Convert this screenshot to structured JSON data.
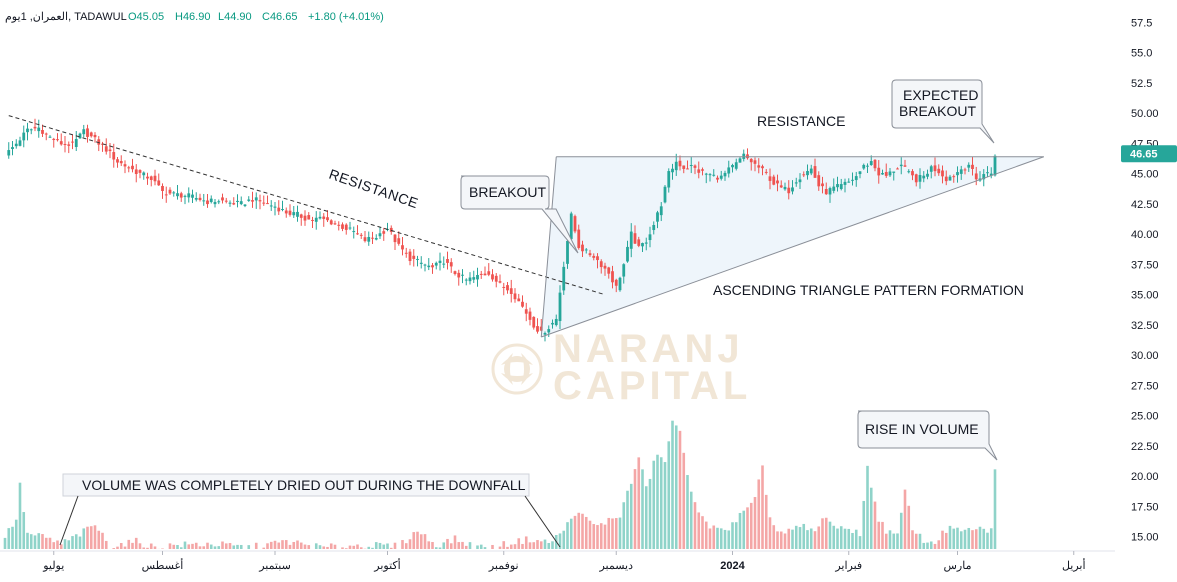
{
  "header": {
    "symbol": "العمران, 1يوم, TADAWUL",
    "open": "O45.05",
    "high": "H46.90",
    "low": "L44.90",
    "close": "C46.65",
    "change": "+1.80 (+4.01%)"
  },
  "watermark": {
    "line1": "NARANJ",
    "line2": "CAPITAL"
  },
  "colors": {
    "up": "#26a69a",
    "down": "#ef5350",
    "vol_up": "#8fd3c9",
    "vol_down": "#f4a6a6",
    "price_tag": "#26a69a",
    "triangle_fill": "#eef5fb"
  },
  "annotations": {
    "resistance_diag": "RESISTANCE",
    "resistance_top": "RESISTANCE",
    "triangle": "ASCENDING TRIANGLE PATTERN FORMATION",
    "breakout": "BREAKOUT",
    "expected_1": "EXPECTED",
    "expected_2": "BREAKOUT",
    "rise_volume": "RISE IN VOLUME",
    "volume_dried": "VOLUME WAS COMPLETELY DRIED OUT DURING THE DOWNFALL"
  },
  "chart_data": {
    "type": "candlestick",
    "price_axis": {
      "ticks": [
        "57.5",
        "55.0",
        "52.5",
        "50.00",
        "47.50",
        "45.00",
        "42.50",
        "40.00",
        "37.50",
        "35.00",
        "32.50",
        "30.00",
        "27.50",
        "25.00",
        "22.50",
        "20.00",
        "17.50",
        "15.00"
      ],
      "range": [
        13.4,
        58.2
      ],
      "last_price": "46.65"
    },
    "time_axis": {
      "ticks": [
        "يوليو",
        "أغسطس",
        "سبتمبر",
        "أكتوبر",
        "نوفمبر",
        "ديسمبر",
        "2024",
        "فبراير",
        "مارس",
        "أبريل"
      ],
      "tick_days": [
        13,
        42,
        72,
        102,
        133,
        163,
        194,
        225,
        254,
        285
      ]
    },
    "price_path": [
      [
        0,
        46.5
      ],
      [
        3,
        47.5
      ],
      [
        6,
        48.6
      ],
      [
        9,
        48.8
      ],
      [
        12,
        48.0
      ],
      [
        15,
        47.5
      ],
      [
        18,
        47.4
      ],
      [
        21,
        48.5
      ],
      [
        24,
        47.8
      ],
      [
        27,
        47.0
      ],
      [
        30,
        46.0
      ],
      [
        33,
        45.5
      ],
      [
        36,
        45.0
      ],
      [
        39,
        44.6
      ],
      [
        42,
        43.5
      ],
      [
        45,
        43.3
      ],
      [
        48,
        43.2
      ],
      [
        51,
        43.0
      ],
      [
        54,
        42.7
      ],
      [
        57,
        42.8
      ],
      [
        60,
        42.6
      ],
      [
        63,
        42.5
      ],
      [
        66,
        42.9
      ],
      [
        69,
        42.6
      ],
      [
        72,
        42.3
      ],
      [
        75,
        41.8
      ],
      [
        78,
        41.6
      ],
      [
        81,
        41.2
      ],
      [
        84,
        41.3
      ],
      [
        87,
        41.0
      ],
      [
        90,
        40.6
      ],
      [
        93,
        40.2
      ],
      [
        96,
        39.5
      ],
      [
        99,
        39.8
      ],
      [
        102,
        40.5
      ],
      [
        105,
        39.0
      ],
      [
        108,
        38.0
      ],
      [
        111,
        37.6
      ],
      [
        114,
        37.2
      ],
      [
        117,
        37.8
      ],
      [
        120,
        36.8
      ],
      [
        123,
        36.2
      ],
      [
        126,
        36.5
      ],
      [
        129,
        36.8
      ],
      [
        132,
        35.8
      ],
      [
        135,
        35.3
      ],
      [
        138,
        34.0
      ],
      [
        141,
        32.5
      ],
      [
        143,
        31.8
      ],
      [
        145,
        32.3
      ],
      [
        147,
        33.0
      ],
      [
        149,
        37.5
      ],
      [
        151,
        41.5
      ],
      [
        153,
        39.0
      ],
      [
        155,
        38.5
      ],
      [
        157,
        38.2
      ],
      [
        159,
        37.5
      ],
      [
        161,
        36.8
      ],
      [
        163,
        35.6
      ],
      [
        165,
        37.5
      ],
      [
        167,
        40.0
      ],
      [
        169,
        38.8
      ],
      [
        171,
        39.5
      ],
      [
        173,
        40.8
      ],
      [
        175,
        42.5
      ],
      [
        177,
        45.0
      ],
      [
        179,
        46.0
      ],
      [
        181,
        45.5
      ],
      [
        183,
        45.6
      ],
      [
        185,
        45.2
      ],
      [
        187,
        45.0
      ],
      [
        189,
        44.8
      ],
      [
        191,
        44.7
      ],
      [
        193,
        45.3
      ],
      [
        195,
        45.8
      ],
      [
        197,
        46.5
      ],
      [
        199,
        46.0
      ],
      [
        201,
        45.5
      ],
      [
        203,
        45.0
      ],
      [
        205,
        44.2
      ],
      [
        207,
        43.8
      ],
      [
        209,
        43.6
      ],
      [
        211,
        44.5
      ],
      [
        213,
        45.0
      ],
      [
        215,
        45.4
      ],
      [
        217,
        44.0
      ],
      [
        219,
        43.5
      ],
      [
        221,
        43.8
      ],
      [
        223,
        44.0
      ],
      [
        225,
        44.3
      ],
      [
        227,
        44.8
      ],
      [
        229,
        45.6
      ],
      [
        231,
        46.0
      ],
      [
        233,
        45.0
      ],
      [
        235,
        44.8
      ],
      [
        237,
        45.3
      ],
      [
        239,
        45.7
      ],
      [
        241,
        45.0
      ],
      [
        243,
        44.5
      ],
      [
        245,
        44.8
      ],
      [
        247,
        45.5
      ],
      [
        249,
        45.2
      ],
      [
        251,
        44.6
      ],
      [
        253,
        44.9
      ],
      [
        255,
        45.4
      ],
      [
        257,
        45.8
      ],
      [
        259,
        44.5
      ],
      [
        261,
        45.0
      ],
      [
        263,
        45.05
      ],
      [
        264,
        46.65
      ]
    ],
    "volume_path": [
      [
        0,
        15.0
      ],
      [
        3,
        16.5
      ],
      [
        4,
        19.2
      ],
      [
        6,
        15.2
      ],
      [
        10,
        15.0
      ],
      [
        15,
        14.4
      ],
      [
        20,
        15.2
      ],
      [
        24,
        16.0
      ],
      [
        28,
        14.2
      ],
      [
        35,
        14.6
      ],
      [
        40,
        14.1
      ],
      [
        45,
        14.3
      ],
      [
        55,
        14.4
      ],
      [
        65,
        14.1
      ],
      [
        75,
        14.6
      ],
      [
        85,
        14.1
      ],
      [
        95,
        14.3
      ],
      [
        105,
        14.2
      ],
      [
        110,
        15.5
      ],
      [
        115,
        14.3
      ],
      [
        120,
        14.8
      ],
      [
        125,
        14.2
      ],
      [
        130,
        14.1
      ],
      [
        135,
        14.5
      ],
      [
        140,
        14.8
      ],
      [
        145,
        14.5
      ],
      [
        148,
        15.2
      ],
      [
        150,
        16.0
      ],
      [
        152,
        17.0
      ],
      [
        155,
        16.5
      ],
      [
        158,
        15.8
      ],
      [
        160,
        16.2
      ],
      [
        164,
        16.8
      ],
      [
        167,
        19.5
      ],
      [
        169,
        21.6
      ],
      [
        171,
        19.0
      ],
      [
        174,
        22.0
      ],
      [
        176,
        21.0
      ],
      [
        178,
        24.7
      ],
      [
        180,
        23.5
      ],
      [
        182,
        20.0
      ],
      [
        184,
        18.0
      ],
      [
        186,
        16.5
      ],
      [
        188,
        15.5
      ],
      [
        190,
        16.0
      ],
      [
        193,
        15.5
      ],
      [
        196,
        16.8
      ],
      [
        198,
        17.2
      ],
      [
        200,
        18.0
      ],
      [
        202,
        20.9
      ],
      [
        204,
        16.5
      ],
      [
        206,
        15.5
      ],
      [
        208,
        15.2
      ],
      [
        210,
        15.6
      ],
      [
        213,
        15.8
      ],
      [
        216,
        15.4
      ],
      [
        219,
        16.8
      ],
      [
        222,
        15.5
      ],
      [
        225,
        15.7
      ],
      [
        228,
        15.3
      ],
      [
        230,
        20.6
      ],
      [
        233,
        16.5
      ],
      [
        235,
        15.5
      ],
      [
        238,
        15.0
      ],
      [
        240,
        18.8
      ],
      [
        242,
        15.8
      ],
      [
        245,
        14.6
      ],
      [
        248,
        14.6
      ],
      [
        252,
        15.8
      ],
      [
        255,
        15.3
      ],
      [
        258,
        15.7
      ],
      [
        261,
        15.5
      ],
      [
        263,
        15.6
      ],
      [
        264,
        20.4
      ]
    ],
    "trendlines": {
      "resistance_diagonal": [
        [
          1,
          49.8
        ],
        [
          160,
          35.0
        ]
      ],
      "triangle_top": [
        [
          147,
          46.4
        ],
        [
          277,
          46.4
        ]
      ],
      "triangle_bottom": [
        [
          143,
          31.5
        ],
        [
          277,
          46.4
        ]
      ]
    }
  }
}
